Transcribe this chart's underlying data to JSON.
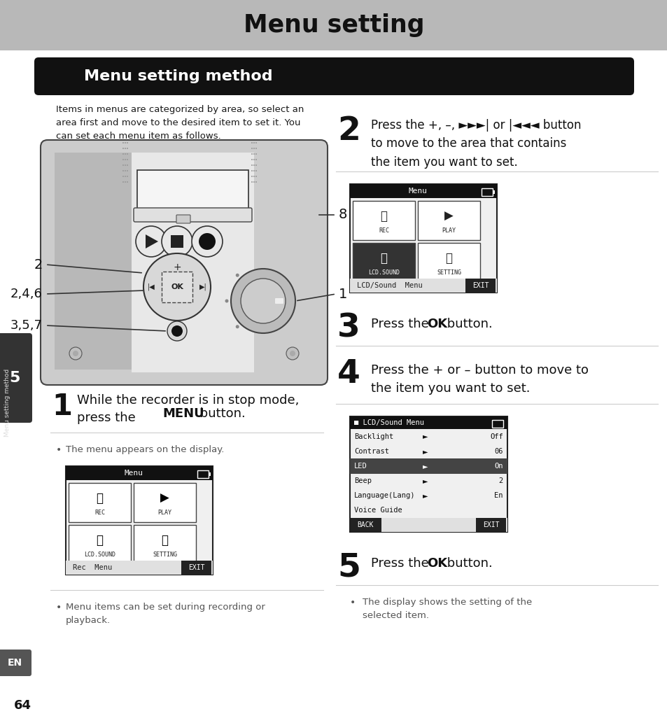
{
  "page_title": "Menu setting",
  "section_title": "Menu setting method",
  "header_bg": "#b8b8b8",
  "section_bg": "#111111",
  "section_fg": "#ffffff",
  "body_text": "Items in menus are categorized by area, so select an\narea first and move to the desired item to set it. You\ncan set each menu item as follows.",
  "bg_color": "#ffffff",
  "text_color": "#1a1a1a",
  "bullet_color": "#555555",
  "sep_color": "#cccccc",
  "side_bg": "#888888",
  "screen_bg": "#e0e0e0",
  "screen_title_bg": "#222222",
  "screen_title_fg": "#ffffff",
  "btn_white_bg": "#ffffff",
  "btn_dark_bg": "#333333",
  "btn_dark_fg": "#ffffff",
  "exit_bg": "#222222",
  "exit_fg": "#ffffff",
  "highlight_bg": "#555555",
  "highlight_fg": "#ffffff"
}
